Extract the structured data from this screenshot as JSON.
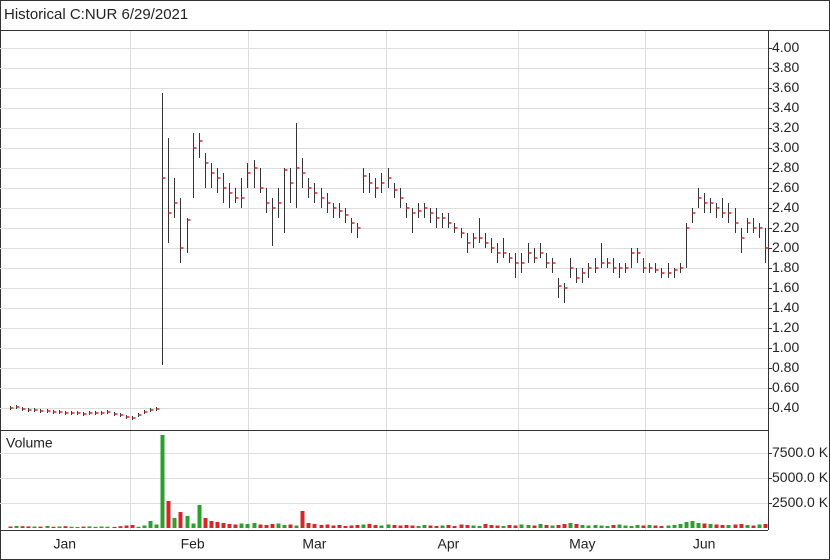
{
  "chart_data": {
    "type": "hlc",
    "title": "Historical C:NUR 6/29/2021",
    "categories": [
      null,
      null,
      null,
      null,
      null,
      null,
      null,
      null,
      null,
      "Jan",
      null,
      null,
      null,
      null,
      null,
      null,
      null,
      null,
      null,
      null,
      null,
      null,
      null,
      null,
      null,
      null,
      null,
      null,
      null,
      null,
      "Feb",
      null,
      null,
      null,
      null,
      null,
      null,
      null,
      null,
      null,
      null,
      null,
      null,
      null,
      null,
      null,
      null,
      null,
      null,
      null,
      "Mar",
      null,
      null,
      null,
      null,
      null,
      null,
      null,
      null,
      null,
      null,
      null,
      null,
      null,
      null,
      null,
      null,
      null,
      null,
      null,
      null,
      null,
      "Apr",
      null,
      null,
      null,
      null,
      null,
      null,
      null,
      null,
      null,
      null,
      null,
      null,
      null,
      null,
      null,
      null,
      null,
      null,
      null,
      null,
      null,
      "May",
      null,
      null,
      null,
      null,
      null,
      null,
      null,
      null,
      null,
      null,
      null,
      null,
      null,
      null,
      null,
      null,
      null,
      null,
      null,
      "Jun",
      null,
      null,
      null,
      null,
      null,
      null,
      null,
      null,
      null,
      null
    ],
    "high": [
      0.42,
      0.43,
      0.41,
      0.4,
      0.4,
      0.39,
      0.39,
      0.38,
      0.38,
      0.37,
      0.37,
      0.37,
      0.36,
      0.37,
      0.37,
      0.37,
      0.38,
      0.36,
      0.35,
      0.33,
      0.32,
      0.35,
      0.38,
      0.4,
      0.41,
      3.55,
      3.1,
      2.7,
      2.5,
      2.3,
      3.15,
      3.15,
      2.95,
      2.85,
      2.8,
      2.75,
      2.65,
      2.6,
      2.7,
      2.85,
      2.88,
      2.8,
      2.6,
      2.5,
      2.6,
      2.8,
      2.8,
      3.25,
      2.9,
      2.7,
      2.65,
      2.6,
      2.55,
      2.45,
      2.45,
      2.4,
      2.3,
      2.25,
      2.8,
      2.75,
      2.7,
      2.75,
      2.8,
      2.65,
      2.6,
      2.45,
      2.4,
      2.45,
      2.45,
      2.4,
      2.4,
      2.35,
      2.35,
      2.25,
      2.2,
      2.15,
      2.15,
      2.3,
      2.15,
      2.1,
      2.05,
      2.1,
      1.95,
      1.95,
      1.95,
      2.05,
      2.0,
      2.05,
      1.95,
      1.9,
      1.7,
      1.65,
      1.9,
      1.8,
      1.8,
      1.85,
      1.9,
      2.05,
      1.9,
      1.9,
      1.85,
      1.85,
      2.0,
      2.0,
      1.9,
      1.85,
      1.85,
      1.8,
      1.85,
      1.8,
      1.85,
      2.25,
      2.4,
      2.6,
      2.55,
      2.5,
      2.45,
      2.5,
      2.45,
      2.4,
      2.2,
      2.3,
      2.3,
      2.25,
      2.2
    ],
    "low": [
      0.38,
      0.39,
      0.37,
      0.36,
      0.36,
      0.35,
      0.35,
      0.34,
      0.34,
      0.33,
      0.33,
      0.33,
      0.32,
      0.33,
      0.33,
      0.33,
      0.34,
      0.32,
      0.31,
      0.29,
      0.28,
      0.31,
      0.34,
      0.36,
      0.37,
      0.83,
      2.05,
      2.3,
      1.85,
      1.95,
      2.5,
      2.9,
      2.6,
      2.6,
      2.55,
      2.45,
      2.4,
      2.45,
      2.4,
      2.6,
      2.6,
      2.55,
      2.35,
      2.02,
      2.3,
      2.15,
      2.45,
      2.4,
      2.6,
      2.5,
      2.45,
      2.4,
      2.35,
      2.3,
      2.3,
      2.25,
      2.15,
      2.1,
      2.55,
      2.55,
      2.5,
      2.55,
      2.6,
      2.5,
      2.4,
      2.3,
      2.15,
      2.3,
      2.3,
      2.25,
      2.2,
      2.2,
      2.2,
      2.15,
      2.1,
      1.95,
      2.0,
      2.05,
      2.0,
      1.95,
      1.85,
      1.9,
      1.85,
      1.7,
      1.75,
      1.85,
      1.85,
      1.9,
      1.8,
      1.75,
      1.5,
      1.45,
      1.7,
      1.65,
      1.65,
      1.7,
      1.75,
      1.8,
      1.8,
      1.75,
      1.7,
      1.75,
      1.8,
      1.85,
      1.75,
      1.75,
      1.75,
      1.7,
      1.7,
      1.7,
      1.75,
      1.8,
      2.25,
      2.4,
      2.35,
      2.35,
      2.3,
      2.3,
      2.25,
      2.15,
      1.95,
      2.15,
      2.15,
      2.1,
      1.85
    ],
    "close": [
      0.4,
      0.41,
      0.39,
      0.38,
      0.38,
      0.37,
      0.37,
      0.36,
      0.36,
      0.35,
      0.35,
      0.35,
      0.34,
      0.35,
      0.35,
      0.35,
      0.36,
      0.34,
      0.33,
      0.31,
      0.3,
      0.33,
      0.36,
      0.38,
      0.39,
      2.7,
      2.35,
      2.45,
      2.0,
      2.28,
      3.0,
      3.07,
      2.85,
      2.75,
      2.7,
      2.6,
      2.55,
      2.5,
      2.5,
      2.75,
      2.8,
      2.6,
      2.45,
      2.4,
      2.45,
      2.78,
      2.65,
      2.8,
      2.75,
      2.6,
      2.55,
      2.5,
      2.45,
      2.4,
      2.37,
      2.33,
      2.25,
      2.2,
      2.72,
      2.65,
      2.6,
      2.65,
      2.7,
      2.58,
      2.5,
      2.4,
      2.35,
      2.37,
      2.4,
      2.35,
      2.3,
      2.3,
      2.25,
      2.2,
      2.15,
      2.05,
      2.1,
      2.1,
      2.05,
      2.0,
      1.95,
      1.95,
      1.9,
      1.85,
      1.85,
      1.95,
      1.9,
      1.95,
      1.85,
      1.85,
      1.62,
      1.6,
      1.8,
      1.7,
      1.75,
      1.8,
      1.8,
      1.85,
      1.85,
      1.8,
      1.8,
      1.8,
      1.95,
      1.95,
      1.8,
      1.8,
      1.78,
      1.75,
      1.75,
      1.78,
      1.8,
      2.2,
      2.35,
      2.5,
      2.45,
      2.45,
      2.4,
      2.35,
      2.35,
      2.25,
      2.1,
      2.25,
      2.2,
      2.2,
      2.0
    ],
    "ylim": [
      0.18,
      4.18
    ],
    "yticks": [
      {
        "value": 0.4,
        "label": "0.40"
      },
      {
        "value": 0.6,
        "label": "0.60"
      },
      {
        "value": 0.8,
        "label": "0.80"
      },
      {
        "value": 1.0,
        "label": "1.00"
      },
      {
        "value": 1.2,
        "label": "1.20"
      },
      {
        "value": 1.4,
        "label": "1.40"
      },
      {
        "value": 1.6,
        "label": "1.60"
      },
      {
        "value": 1.8,
        "label": "1.80"
      },
      {
        "value": 2.0,
        "label": "2.00"
      },
      {
        "value": 2.2,
        "label": "2.20"
      },
      {
        "value": 2.4,
        "label": "2.40"
      },
      {
        "value": 2.6,
        "label": "2.60"
      },
      {
        "value": 2.8,
        "label": "2.80"
      },
      {
        "value": 3.0,
        "label": "3.00"
      },
      {
        "value": 3.2,
        "label": "3.20"
      },
      {
        "value": 3.4,
        "label": "3.40"
      },
      {
        "value": 3.6,
        "label": "3.60"
      },
      {
        "value": 3.8,
        "label": "3.80"
      },
      {
        "value": 4.0,
        "label": "4.00"
      }
    ],
    "bar_color": "#333333",
    "close_color": "#d62728",
    "up_color": "#2ca02c",
    "down_color": "#d62728",
    "grid": true,
    "volume": {
      "label": "Volume",
      "values": [
        150,
        200,
        180,
        160,
        150,
        140,
        200,
        120,
        150,
        180,
        130,
        100,
        140,
        160,
        120,
        150,
        130,
        110,
        180,
        250,
        300,
        120,
        250,
        700,
        350,
        9300,
        2700,
        1000,
        1600,
        1200,
        450,
        2300,
        1000,
        700,
        600,
        500,
        400,
        350,
        450,
        400,
        500,
        350,
        300,
        400,
        450,
        300,
        350,
        250,
        1700,
        500,
        400,
        300,
        350,
        250,
        300,
        200,
        250,
        300,
        350,
        400,
        300,
        250,
        350,
        300,
        250,
        300,
        250,
        200,
        300,
        250,
        200,
        250,
        300,
        200,
        350,
        300,
        250,
        200,
        400,
        300,
        250,
        200,
        300,
        250,
        350,
        300,
        250,
        400,
        300,
        250,
        300,
        400,
        500,
        400,
        300,
        250,
        300,
        250,
        200,
        300,
        350,
        250,
        200,
        300,
        250,
        300,
        250,
        200,
        250,
        300,
        400,
        600,
        700,
        500,
        450,
        400,
        350,
        300,
        300,
        350,
        400,
        300,
        250,
        350,
        400
      ],
      "ylim": [
        -200,
        9800
      ],
      "yticks": [
        {
          "value": 2500,
          "label": "2500.0 K"
        },
        {
          "value": 5000,
          "label": "5000.0 K"
        },
        {
          "value": 7500,
          "label": "7500.0 K"
        }
      ]
    }
  }
}
